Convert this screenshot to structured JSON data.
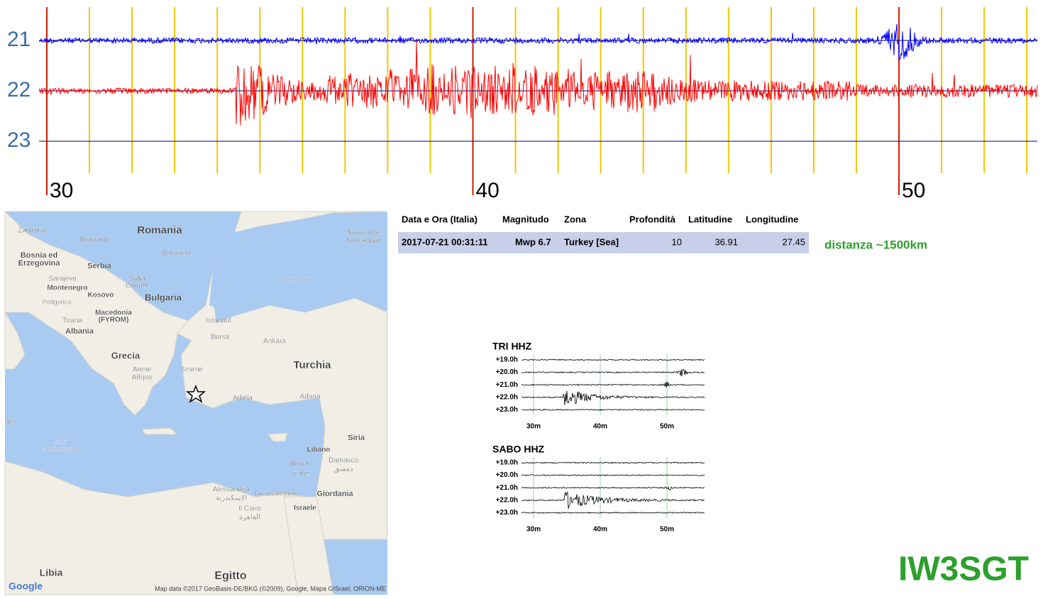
{
  "helicorder": {
    "rows": [
      "21",
      "22",
      "23"
    ],
    "minutes": [
      "30",
      "40",
      "50"
    ]
  },
  "table": {
    "header": [
      "Data e Ora (Italia)",
      "Magnitudo",
      "Zona",
      "Profondità",
      "Latitudine",
      "Longitudine"
    ],
    "rows": [
      [
        "2017-07-21 00:31:11",
        "Mwp 6.7",
        "Turkey [Sea]",
        "10",
        "36.91",
        "27.45"
      ]
    ]
  },
  "distance": "distanza ~1500km",
  "map": {
    "labels": [
      "Zagabria",
      "Romania",
      "Belgrado",
      "Bucarest",
      "Bosnia ed",
      "Erzegovina",
      "Serbia",
      "Sarajevo",
      "Montenegro",
      "Kosovo",
      "Sofia",
      "София",
      "Bulgaria",
      "Podgorica",
      "Tirana",
      "Macedonia",
      "(FYROM)",
      "Albania",
      "Istanbul",
      "Bursa",
      "Ankara",
      "Mar Nero",
      "Krasnodar",
      "Краснодар",
      "Grecia",
      "Smirne",
      "Atene",
      "Αθήνα",
      "Turchia",
      "Adalia",
      "Adana",
      "Mar",
      "Mediterraneo",
      "Siria",
      "Libano",
      "Beirut",
      "بيروت",
      "Damasco",
      "دمشق",
      "Alessandria",
      "الإسكندرية",
      "Gerusalemme",
      "Giordania",
      "Il Cairo",
      "القاهرة",
      "Israele",
      "Libia",
      "Egitto",
      "alta"
    ],
    "attribution": "Map data ©2017 GeoBasis-DE/BKG (©2009), Google, Mapa GISrael, ORION-ME",
    "logo": "Google"
  },
  "stations": [
    {
      "name": "TRI HHZ",
      "hours": [
        "+19.0h",
        "+20.0h",
        "+21.0h",
        "+22.0h",
        "+23.0h"
      ],
      "minutes": [
        "30m",
        "40m",
        "50m"
      ]
    },
    {
      "name": "SABO HHZ",
      "hours": [
        "+19.0h",
        "+20.0h",
        "+21.0h",
        "+22.0h",
        "+23.0h"
      ],
      "minutes": [
        "30m",
        "40m",
        "50m"
      ]
    }
  ],
  "callsign": "IW3SGT"
}
